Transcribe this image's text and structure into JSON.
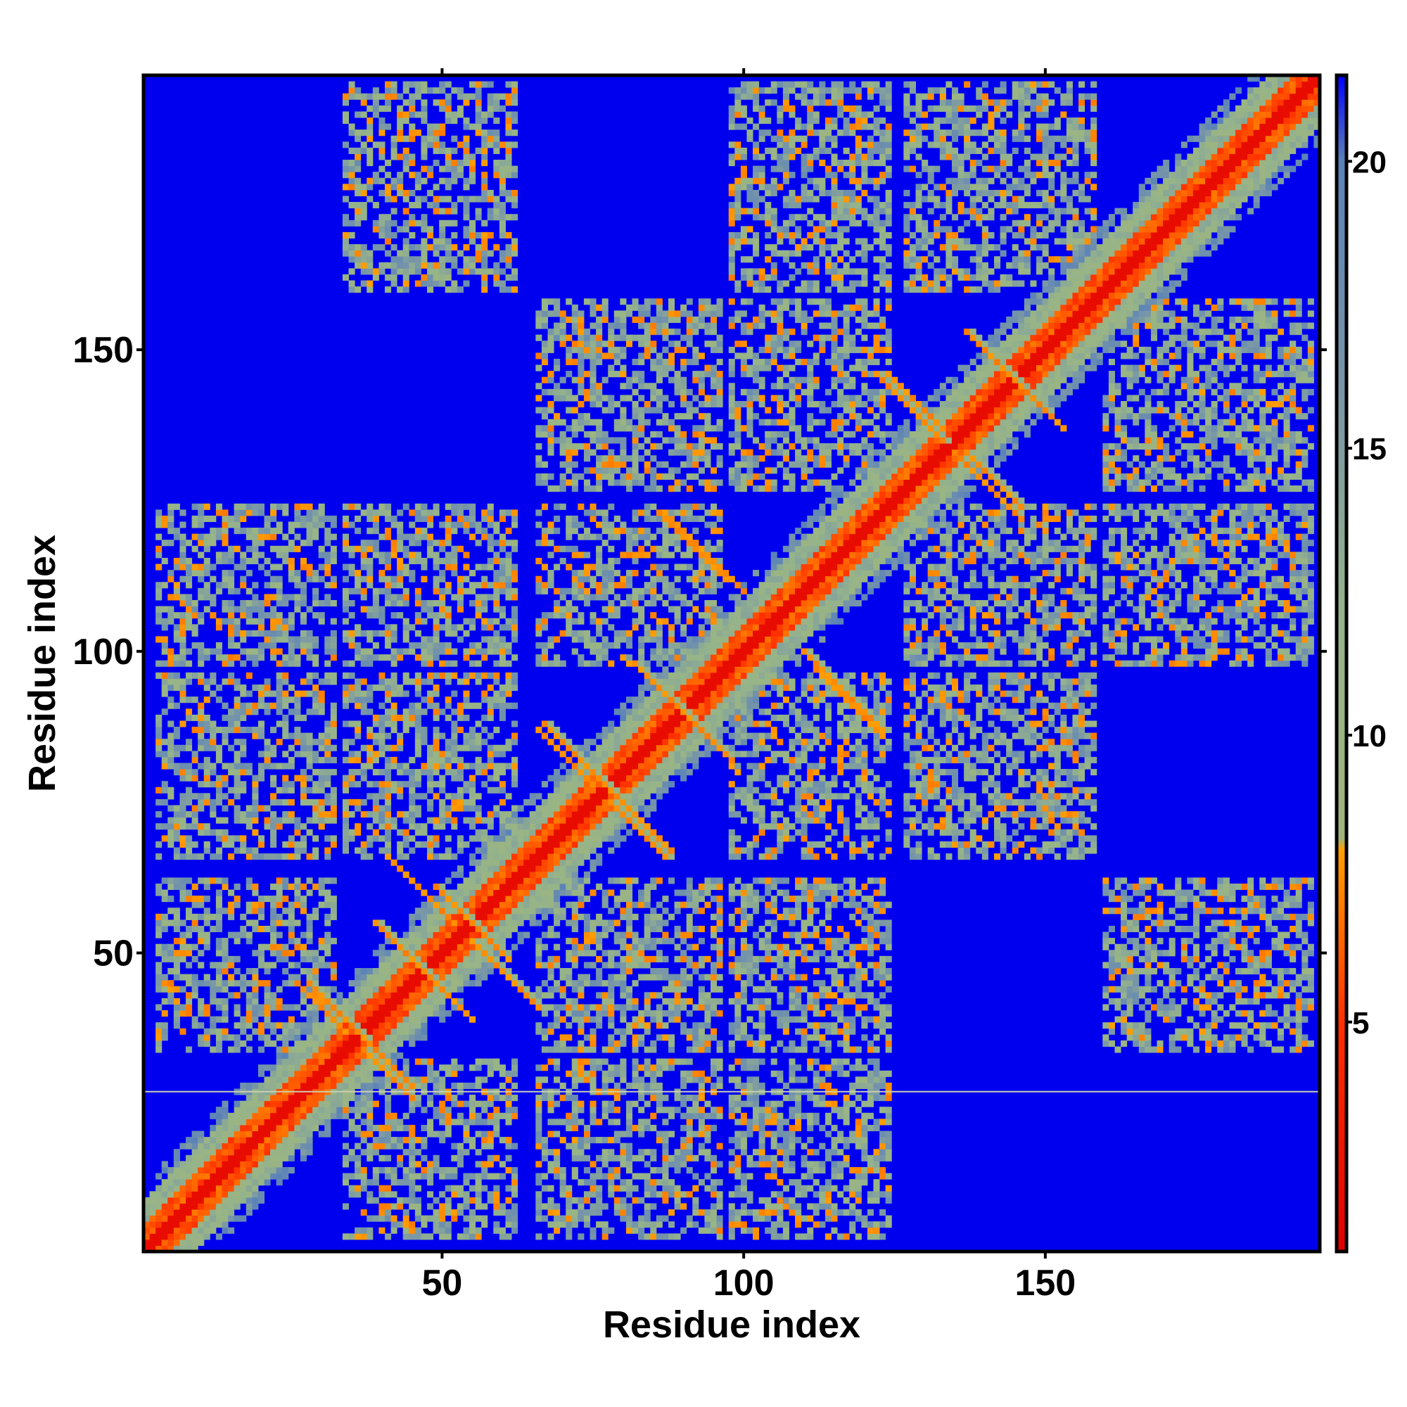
{
  "chart_data": {
    "type": "heatmap",
    "title": "",
    "xlabel": "Residue index",
    "ylabel": "Residue index",
    "xlim": [
      1,
      195
    ],
    "ylim": [
      1,
      195
    ],
    "xticks": [
      50,
      100,
      150
    ],
    "yticks": [
      50,
      100,
      150
    ],
    "colorbar": {
      "range": [
        1,
        21.5
      ],
      "ticks": [
        5,
        10,
        15,
        20
      ],
      "stops": [
        {
          "value": 1,
          "color": "#e00000"
        },
        {
          "value": 5,
          "color": "#ff3000"
        },
        {
          "value": 8,
          "color": "#ff9f00"
        },
        {
          "value": 8.2,
          "color": "#a0b47a"
        },
        {
          "value": 12,
          "color": "#96b48a"
        },
        {
          "value": 16,
          "color": "#7896a8"
        },
        {
          "value": 20,
          "color": "#5a82b8"
        },
        {
          "value": 21.5,
          "color": "#0000ff"
        }
      ]
    },
    "background": {
      "value": 21.5,
      "color": "#0000ee"
    },
    "horizontal_line_y": 27,
    "helices": [
      {
        "start": 3,
        "end": 32
      },
      {
        "start": 34,
        "end": 62
      },
      {
        "start": 66,
        "end": 96
      },
      {
        "start": 98,
        "end": 124
      },
      {
        "start": 127,
        "end": 158
      },
      {
        "start": 160,
        "end": 194
      }
    ],
    "contacts": [
      {
        "x": 28,
        "y": 45,
        "dx": 1,
        "dy": -1,
        "len": 10,
        "level": "orange"
      },
      {
        "x": 37,
        "y": 34,
        "dx": 1,
        "dy": -1,
        "len": 9,
        "level": "orange"
      },
      {
        "x": 39,
        "y": 55,
        "dx": 1,
        "dy": -1,
        "len": 12,
        "level": "orange"
      },
      {
        "x": 49,
        "y": 61,
        "dx": 1,
        "dy": -1,
        "len": 12,
        "level": "orange"
      },
      {
        "x": 55,
        "y": 52,
        "dx": 1,
        "dy": -1,
        "len": 12,
        "level": "orange"
      },
      {
        "x": 67,
        "y": 88,
        "dx": 1,
        "dy": -1,
        "len": 14,
        "level": "orange"
      },
      {
        "x": 82,
        "y": 98,
        "dx": 1,
        "dy": -1,
        "len": 16,
        "level": "orange"
      },
      {
        "x": 78,
        "y": 75,
        "dx": 1,
        "dy": -1,
        "len": 10,
        "level": "orange"
      },
      {
        "x": 86,
        "y": 123,
        "dx": 1,
        "dy": -1,
        "len": 12,
        "level": "orange"
      },
      {
        "x": 110,
        "y": 100,
        "dx": 1,
        "dy": -1,
        "len": 14,
        "level": "orange"
      },
      {
        "x": 122,
        "y": 146,
        "dx": 1,
        "dy": -1,
        "len": 12,
        "level": "orange"
      },
      {
        "x": 137,
        "y": 153,
        "dx": 1,
        "dy": -1,
        "len": 14,
        "level": "orange"
      },
      {
        "x": 137,
        "y": 133,
        "dx": 1,
        "dy": -1,
        "len": 10,
        "level": "orange"
      }
    ]
  }
}
